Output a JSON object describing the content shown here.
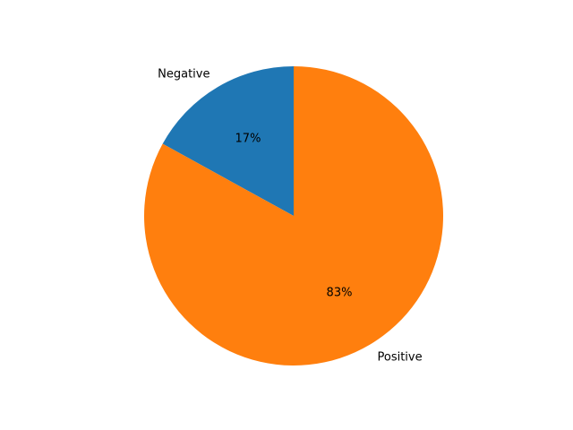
{
  "chart_data": {
    "type": "pie",
    "categories": [
      "Negative",
      "Positive"
    ],
    "values": [
      17,
      83
    ],
    "value_labels": [
      "17%",
      "83%"
    ],
    "colors": [
      "#1f77b4",
      "#ff7f0e"
    ],
    "start_angle_deg": 90,
    "direction": "counterclockwise",
    "title": "",
    "legend": "none"
  }
}
